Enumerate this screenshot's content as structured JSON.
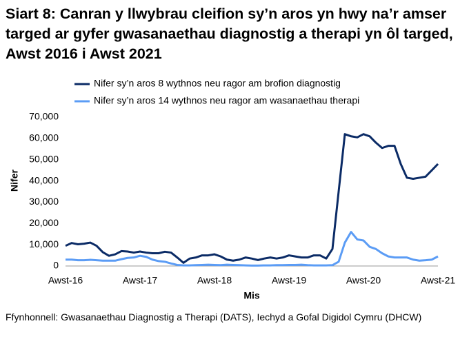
{
  "chart_data": {
    "type": "line",
    "title": "Siart 8: Canran y llwybrau cleifion sy’n aros yn hwy na’r amser targed ar gyfer gwasanaethau diagnostig a therapi yn ôl targed, Awst 2016 i Awst 2021",
    "x_label": "Mis",
    "y_label": "Nifer",
    "source": "Ffynhonnell: Gwasanaethau Diagnostig a Therapi (DATS), Iechyd a Gofal Digidol Cymru (DHCW)",
    "categories": [
      "Awst-16",
      null,
      null,
      null,
      null,
      null,
      null,
      null,
      null,
      null,
      null,
      null,
      "Awst-17",
      null,
      null,
      null,
      null,
      null,
      null,
      null,
      null,
      null,
      null,
      null,
      "Awst-18",
      null,
      null,
      null,
      null,
      null,
      null,
      null,
      null,
      null,
      null,
      null,
      "Awst-19",
      null,
      null,
      null,
      null,
      null,
      null,
      null,
      null,
      null,
      null,
      null,
      "Awst-20",
      null,
      null,
      null,
      null,
      null,
      null,
      null,
      null,
      null,
      null,
      null,
      "Awst-21"
    ],
    "series": [
      {
        "name": "Nifer sy’n aros 8 wythnos neu ragor am brofion diagnostig",
        "color": "#0b2b66",
        "values": [
          9500,
          10800,
          10200,
          10500,
          11000,
          9500,
          6500,
          4800,
          5500,
          7000,
          6800,
          6300,
          6800,
          6300,
          6000,
          6000,
          6700,
          6300,
          4000,
          1500,
          3500,
          4000,
          5000,
          5000,
          5500,
          4500,
          3000,
          2500,
          3000,
          4000,
          3500,
          2800,
          3500,
          4000,
          3500,
          4000,
          5000,
          4500,
          4000,
          4000,
          5000,
          5000,
          3500,
          8000,
          35000,
          62000,
          61000,
          60500,
          62000,
          61000,
          58000,
          55500,
          56500,
          56500,
          48000,
          41500,
          41000,
          41500,
          42000,
          45000,
          48000
        ]
      },
      {
        "name": "Nifer sy’n aros 14 wythnos neu ragor am wasanaethau therapi",
        "color": "#5b9cf5",
        "values": [
          3000,
          3000,
          2700,
          2700,
          2900,
          2700,
          2500,
          2500,
          2500,
          3200,
          3800,
          4000,
          4800,
          4300,
          3000,
          2300,
          2000,
          1200,
          500,
          300,
          300,
          400,
          500,
          600,
          500,
          400,
          600,
          500,
          400,
          300,
          200,
          200,
          300,
          300,
          400,
          400,
          500,
          500,
          600,
          400,
          300,
          300,
          300,
          400,
          2000,
          11000,
          16000,
          12500,
          12000,
          9000,
          8000,
          6000,
          4500,
          4000,
          4000,
          4000,
          3000,
          2500,
          2700,
          3000,
          4500
        ]
      }
    ],
    "ylim": [
      0,
      70000
    ],
    "yticks": [
      0,
      {
        "value": 10000,
        "label": "10,000"
      },
      {
        "value": 20000,
        "label": "20,000"
      },
      {
        "value": 30000,
        "label": "30,000"
      },
      {
        "value": 40000,
        "label": "40,000"
      },
      {
        "value": 50000,
        "label": "50,000"
      },
      {
        "value": 60000,
        "label": "60,000"
      },
      {
        "value": 70000,
        "label": "70,000"
      }
    ],
    "grid": false
  }
}
